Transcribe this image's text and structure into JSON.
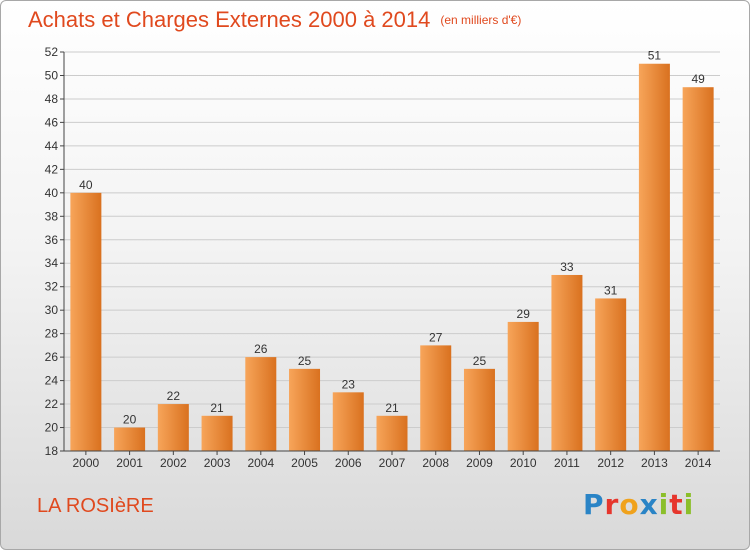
{
  "page": {
    "title": "Achats et Charges Externes 2000 à 2014",
    "subtitle": "(en milliers d'€)",
    "commune": "LA ROSIèRE",
    "logo": {
      "letters": [
        "P",
        "r",
        "o",
        "x",
        "i",
        "t",
        "i"
      ],
      "colors": [
        "#2a84c6",
        "#e6362d",
        "#f0a21c",
        "#2a84c6",
        "#8bbf2a",
        "#e6362d",
        "#8bbf2a"
      ]
    }
  },
  "colors": {
    "title": "#e0491e",
    "bar_light": "#f7a55a",
    "bar_dark": "#d9711f",
    "axis": "#444444",
    "grid": "#cccccc"
  },
  "chart_data": {
    "type": "bar",
    "title": "Achats et Charges Externes 2000 à 2014",
    "subtitle": "(en milliers d'€)",
    "categories": [
      "2000",
      "2001",
      "2002",
      "2003",
      "2004",
      "2005",
      "2006",
      "2007",
      "2008",
      "2009",
      "2010",
      "2011",
      "2012",
      "2013",
      "2014"
    ],
    "values": [
      40,
      20,
      22,
      21,
      26,
      25,
      23,
      21,
      27,
      25,
      29,
      33,
      31,
      51,
      49
    ],
    "ylim": [
      18,
      52
    ],
    "yticks": [
      18,
      20,
      22,
      24,
      26,
      28,
      30,
      32,
      34,
      36,
      38,
      40,
      42,
      44,
      46,
      48,
      50,
      52
    ],
    "grid": true,
    "legend": "none"
  }
}
